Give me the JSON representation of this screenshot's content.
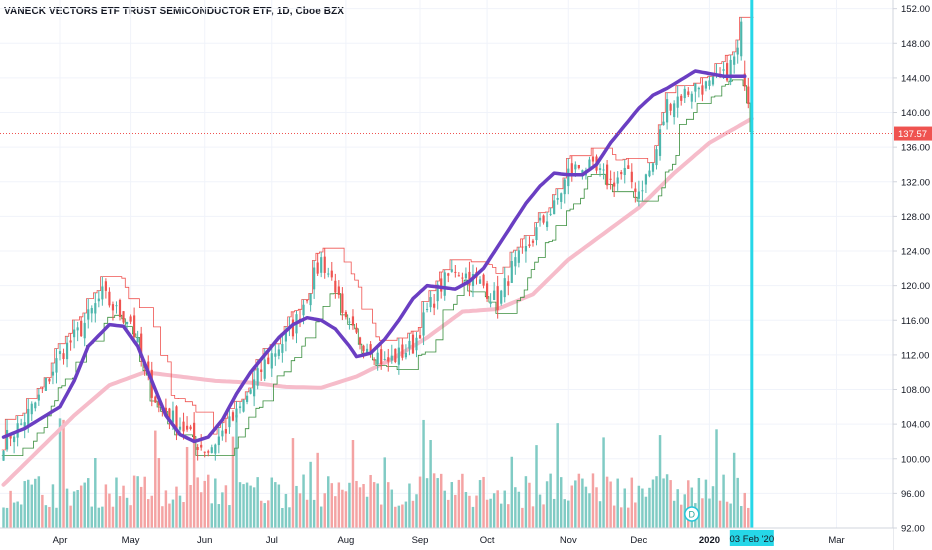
{
  "title": "VANECK VECTORS ETF TRUST SEMICONDUCTOR ETF, 1D, Cboe BZX",
  "colors": {
    "up": "#4db6ac",
    "down": "#ef5350",
    "volume_up": "#80cbc4",
    "volume_down": "#f4a3a3",
    "ma_fast": "#6a3ec2",
    "ma_slow": "#f6bcca",
    "channel_upper": "#ef5350",
    "channel_lower": "#388e3c",
    "cursor": "#26d7e8",
    "price_line": "#ef5350"
  },
  "crosshair": {
    "date_label": "03 Feb '20",
    "date_index": 212
  },
  "last_price": {
    "label": "137.57",
    "value": 137.57
  },
  "event_marker": {
    "label": "D",
    "date_index": 195
  },
  "chart_data": {
    "type": "candlestick",
    "title": "VANECK VECTORS ETF TRUST SEMICONDUCTOR ETF, 1D, Cboe BZX",
    "ylim": [
      92,
      153
    ],
    "yticks": [
      "92.00",
      "96.00",
      "100.00",
      "104.00",
      "108.00",
      "112.00",
      "116.00",
      "120.00",
      "124.00",
      "128.00",
      "132.00",
      "136.00",
      "140.00",
      "144.00",
      "148.00",
      "152.00"
    ],
    "xticks": [
      {
        "label": "Apr",
        "index": 16
      },
      {
        "label": "May",
        "index": 36
      },
      {
        "label": "Jun",
        "index": 57
      },
      {
        "label": "Jul",
        "index": 76
      },
      {
        "label": "Aug",
        "index": 97
      },
      {
        "label": "Sep",
        "index": 118
      },
      {
        "label": "Oct",
        "index": 137
      },
      {
        "label": "Nov",
        "index": 160
      },
      {
        "label": "Dec",
        "index": 180
      },
      {
        "label": "2020",
        "index": 200,
        "bold": true
      },
      {
        "label": "Mar",
        "index": 236
      }
    ],
    "series_keypoints": {
      "close": [
        [
          0,
          102
        ],
        [
          5,
          104
        ],
        [
          10,
          107
        ],
        [
          16,
          112
        ],
        [
          22,
          115
        ],
        [
          28,
          119
        ],
        [
          32,
          117
        ],
        [
          36,
          116
        ],
        [
          40,
          110
        ],
        [
          44,
          106
        ],
        [
          50,
          104
        ],
        [
          54,
          102
        ],
        [
          58,
          101
        ],
        [
          62,
          103
        ],
        [
          66,
          105
        ],
        [
          70,
          108
        ],
        [
          74,
          111
        ],
        [
          78,
          113
        ],
        [
          82,
          115
        ],
        [
          86,
          119
        ],
        [
          90,
          123
        ],
        [
          94,
          120
        ],
        [
          96,
          116
        ],
        [
          100,
          114
        ],
        [
          104,
          113
        ],
        [
          108,
          111
        ],
        [
          112,
          112
        ],
        [
          116,
          113
        ],
        [
          120,
          117
        ],
        [
          124,
          120
        ],
        [
          128,
          122
        ],
        [
          132,
          121
        ],
        [
          136,
          120
        ],
        [
          140,
          118
        ],
        [
          144,
          122
        ],
        [
          148,
          124
        ],
        [
          152,
          127
        ],
        [
          156,
          129
        ],
        [
          160,
          133
        ],
        [
          164,
          134
        ],
        [
          168,
          133
        ],
        [
          172,
          132
        ],
        [
          176,
          133
        ],
        [
          180,
          131
        ],
        [
          184,
          134
        ],
        [
          188,
          141
        ],
        [
          192,
          142
        ],
        [
          196,
          143
        ],
        [
          200,
          143
        ],
        [
          204,
          144
        ],
        [
          208,
          147
        ],
        [
          210,
          142
        ],
        [
          212,
          138
        ]
      ],
      "ma_fast": [
        [
          0,
          102.5
        ],
        [
          6,
          103.5
        ],
        [
          12,
          105
        ],
        [
          16,
          106
        ],
        [
          20,
          109
        ],
        [
          24,
          113
        ],
        [
          30,
          115.5
        ],
        [
          34,
          115.3
        ],
        [
          38,
          113
        ],
        [
          42,
          109
        ],
        [
          46,
          105
        ],
        [
          50,
          102.8
        ],
        [
          54,
          102
        ],
        [
          58,
          102.5
        ],
        [
          62,
          104.5
        ],
        [
          66,
          107.5
        ],
        [
          70,
          110
        ],
        [
          74,
          112
        ],
        [
          78,
          114
        ],
        [
          82,
          115.5
        ],
        [
          86,
          116.3
        ],
        [
          90,
          116
        ],
        [
          94,
          115
        ],
        [
          98,
          113
        ],
        [
          100,
          111.8
        ],
        [
          104,
          112.2
        ],
        [
          108,
          113.8
        ],
        [
          112,
          116
        ],
        [
          116,
          118.5
        ],
        [
          120,
          120
        ],
        [
          124,
          119.8
        ],
        [
          128,
          119.6
        ],
        [
          132,
          120.5
        ],
        [
          136,
          122
        ],
        [
          140,
          124.5
        ],
        [
          144,
          127
        ],
        [
          148,
          129.5
        ],
        [
          152,
          131.5
        ],
        [
          156,
          133
        ],
        [
          160,
          132.8
        ],
        [
          164,
          132.8
        ],
        [
          168,
          134
        ],
        [
          172,
          136.5
        ],
        [
          176,
          138.5
        ],
        [
          180,
          140.5
        ],
        [
          184,
          142
        ],
        [
          188,
          142.8
        ],
        [
          192,
          143.8
        ],
        [
          196,
          144.8
        ],
        [
          200,
          144.5
        ],
        [
          204,
          144.2
        ]
      ],
      "ma_slow": [
        [
          0,
          97
        ],
        [
          10,
          101
        ],
        [
          20,
          105
        ],
        [
          30,
          108.5
        ],
        [
          40,
          110
        ],
        [
          50,
          109.5
        ],
        [
          60,
          109
        ],
        [
          70,
          108.8
        ],
        [
          80,
          108.3
        ],
        [
          90,
          108.2
        ],
        [
          100,
          109.5
        ],
        [
          110,
          111.5
        ],
        [
          120,
          114
        ],
        [
          130,
          117
        ],
        [
          140,
          117.3
        ],
        [
          150,
          119
        ],
        [
          160,
          123
        ],
        [
          170,
          126
        ],
        [
          180,
          129
        ],
        [
          190,
          133
        ],
        [
          200,
          136.5
        ],
        [
          212,
          139.3
        ]
      ]
    },
    "volume_note": "Volume histogram drawn at chart bottom, colored by candle direction"
  }
}
